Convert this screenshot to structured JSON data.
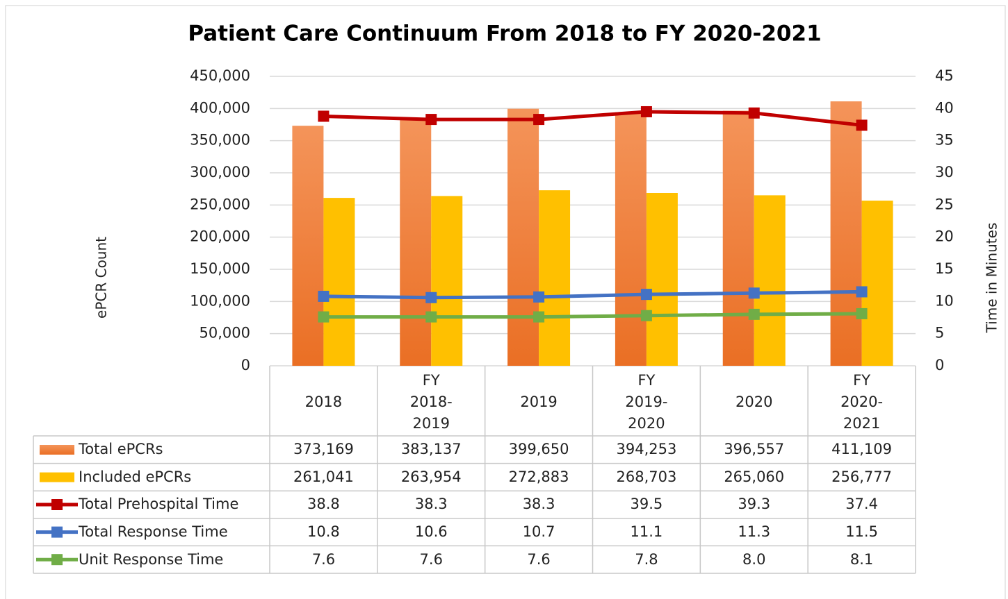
{
  "chart_data": {
    "type": "bar",
    "title": "Patient Care Continuum From 2018 to FY 2020-2021",
    "ylabel": "ePCR Count",
    "y2label": "Time in Minutes",
    "categories": [
      "2018",
      "FY 2018-2019",
      "2019",
      "FY 2019-2020",
      "2020",
      "FY 2020-2021"
    ],
    "ylim": [
      0,
      450000
    ],
    "yticks": [
      0,
      {
        "value": 50000,
        "label": "50,000"
      },
      {
        "value": 100000,
        "label": "100,000"
      },
      {
        "value": 150000,
        "label": "150,000"
      },
      {
        "value": 200000,
        "label": "200,000"
      },
      {
        "value": 250000,
        "label": "250,000"
      },
      {
        "value": 300000,
        "label": "300,000"
      },
      {
        "value": 350000,
        "label": "350,000"
      },
      {
        "value": 400000,
        "label": "400,000"
      },
      {
        "value": 450000,
        "label": "450,000"
      }
    ],
    "y2lim": [
      0,
      45
    ],
    "y2ticks": [
      0,
      5,
      10,
      15,
      20,
      25,
      30,
      35,
      40,
      45
    ],
    "grid": true,
    "series": [
      {
        "name": "Total ePCRs",
        "type": "bar",
        "color": "#ed7d31",
        "values": [
          373169,
          383137,
          399650,
          394253,
          396557,
          411109
        ],
        "value_labels": [
          "373,169",
          "383,137",
          "399,650",
          "394,253",
          "396,557",
          "411,109"
        ]
      },
      {
        "name": "Included ePCRs",
        "type": "bar",
        "color": "#ffc000",
        "values": [
          261041,
          263954,
          272883,
          268703,
          265060,
          256777
        ],
        "value_labels": [
          "261,041",
          "263,954",
          "272,883",
          "268,703",
          "265,060",
          "256,777"
        ]
      },
      {
        "name": "Total Prehospital Time",
        "type": "line",
        "axis": "y2",
        "color": "#c00000",
        "values": [
          38.8,
          38.3,
          38.3,
          39.5,
          39.3,
          37.4
        ]
      },
      {
        "name": "Total Response Time",
        "type": "line",
        "axis": "y2",
        "color": "#4472c4",
        "values": [
          10.8,
          10.6,
          10.7,
          11.1,
          11.3,
          11.5
        ]
      },
      {
        "name": "Unit Response Time",
        "type": "line",
        "axis": "y2",
        "color": "#70ad47",
        "values": [
          7.6,
          7.6,
          7.6,
          7.8,
          8.0,
          8.1
        ],
        "value_labels": [
          "7.6",
          "7.6",
          "7.6",
          "7.8",
          "8.0",
          "8.1"
        ]
      }
    ]
  }
}
